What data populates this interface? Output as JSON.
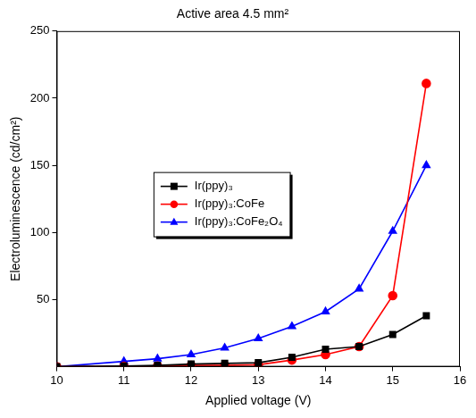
{
  "chart_data": {
    "type": "line",
    "title": "Active area 4.5 mm²",
    "x_label": "Applied voltage (V)",
    "y_label": "Electroluminescence (cd/cm²)",
    "x": [
      10,
      11,
      11.5,
      12,
      12.5,
      13,
      13.5,
      14,
      14.5,
      15,
      15.5
    ],
    "series": [
      {
        "name": "Ir(ppy)₃",
        "color": "#000000",
        "marker": "square",
        "values": [
          0,
          0.5,
          1,
          2,
          2.5,
          3,
          7,
          13,
          15,
          24,
          38
        ]
      },
      {
        "name": "Ir(ppy)₃:CoFe",
        "color": "#ff0000",
        "marker": "circle",
        "values": [
          0,
          0.3,
          0.5,
          1,
          1,
          1.5,
          5,
          9,
          15,
          53,
          211
        ]
      },
      {
        "name": "Ir(ppy)₃:CoFe₂O₄",
        "color": "#0000ff",
        "marker": "triangle",
        "values": [
          0,
          4,
          6,
          9,
          14,
          21,
          30,
          41,
          58,
          101,
          150
        ]
      }
    ],
    "xlim": [
      10,
      16
    ],
    "xticks": [
      10,
      11,
      12,
      13,
      14,
      15,
      16
    ],
    "ylim": [
      0,
      250
    ],
    "yticks": [
      50,
      100,
      150,
      200,
      250
    ],
    "grid": false,
    "legend": "center"
  }
}
